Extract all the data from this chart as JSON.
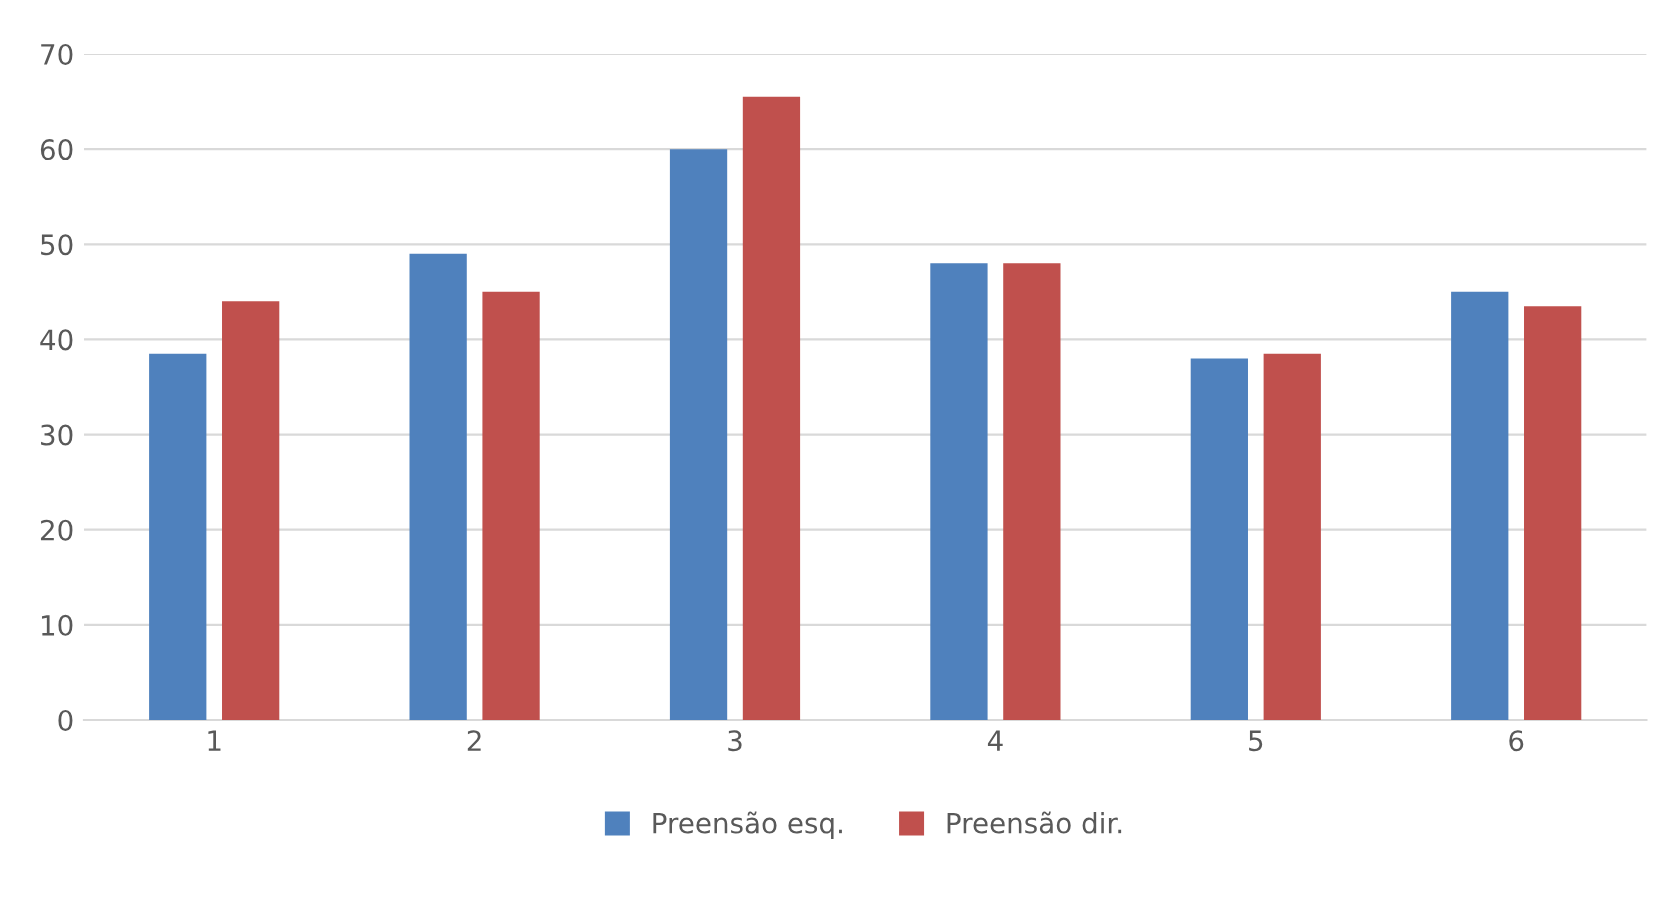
{
  "chart_data": {
    "type": "bar",
    "categories": [
      "1",
      "2",
      "3",
      "4",
      "5",
      "6"
    ],
    "series": [
      {
        "name": "Preensão esq.",
        "color": "#4f81bd",
        "values": [
          38.5,
          49,
          60,
          48,
          38,
          45
        ]
      },
      {
        "name": "Preensão dir.",
        "color": "#c0504d",
        "values": [
          44,
          45,
          65.5,
          48,
          38.5,
          43.5
        ]
      }
    ],
    "ylim": [
      0,
      70
    ],
    "yticks": [
      0,
      10,
      20,
      30,
      40,
      50,
      60,
      70
    ],
    "grid": "y",
    "legend": "bottom"
  }
}
